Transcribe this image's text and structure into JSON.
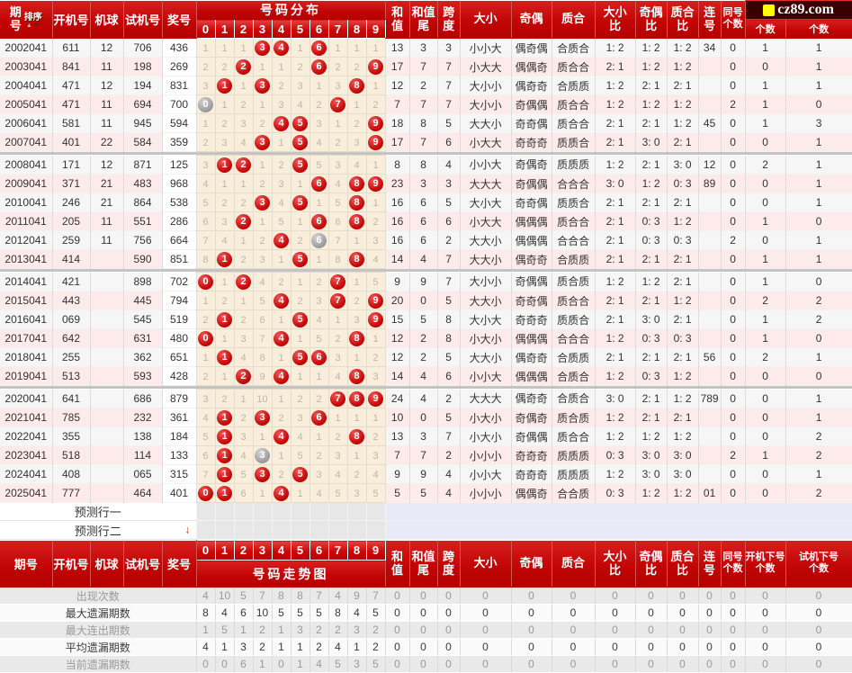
{
  "logo": {
    "text": "cz89.com",
    "square_color": "#ffff00"
  },
  "colors": {
    "header_red": "#c80404",
    "row_pink": "#fdeaea",
    "row_light": "#f6f6f6",
    "grid_cream": "#f9eddb",
    "ball_red": "#c20000",
    "ball_gray": "#a0a0a0",
    "prediction_lavender": "#e9e9f7",
    "separator_gray": "#c4c4c4"
  },
  "top_header": {
    "period_label": "期号",
    "sort_label": "排序",
    "sort_icons": [
      "up-arrow",
      "down-arrow"
    ],
    "cols": [
      "开机号",
      "机球",
      "试机号",
      "奖号"
    ],
    "dist_title": "号码分布",
    "digits": [
      "0",
      "1",
      "2",
      "3",
      "4",
      "5",
      "6",
      "7",
      "8",
      "9"
    ],
    "right_cols": [
      {
        "lines": [
          "和",
          "值"
        ]
      },
      {
        "lines": [
          "和值",
          "尾"
        ]
      },
      {
        "lines": [
          "跨",
          "度"
        ]
      },
      {
        "lines": [
          "大小"
        ]
      },
      {
        "lines": [
          "奇偶"
        ]
      },
      {
        "lines": [
          "质合"
        ]
      },
      {
        "lines": [
          "大小",
          "比"
        ]
      },
      {
        "lines": [
          "奇偶",
          "比"
        ]
      },
      {
        "lines": [
          "质合",
          "比"
        ]
      },
      {
        "lines": [
          "连",
          "号"
        ]
      },
      {
        "lines": [
          "同号",
          "个数"
        ]
      }
    ],
    "last_cols": [
      "个数",
      "个数"
    ]
  },
  "rows": [
    {
      "period": "2002041",
      "machine_no": "611",
      "machine_ball": "12",
      "test_no": "706",
      "prize_no": "436",
      "grid": [
        "1",
        "1",
        "1",
        "B3",
        "B4",
        "1",
        "B6",
        "1",
        "1",
        "1"
      ],
      "sum": "13",
      "sum_tail": "3",
      "span": "3",
      "size": "小小大",
      "parity": "偶奇偶",
      "prime": "合质合",
      "size_ratio": "1: 2",
      "parity_ratio": "1: 2",
      "prime_ratio": "1: 2",
      "consecutive": "34",
      "same_count": "0",
      "machine_next": "1",
      "test_next": "1"
    },
    {
      "period": "2003041",
      "machine_no": "841",
      "machine_ball": "11",
      "test_no": "198",
      "prize_no": "269",
      "grid": [
        "2",
        "2",
        "B2",
        "1",
        "1",
        "2",
        "B6",
        "2",
        "2",
        "B9"
      ],
      "sum": "17",
      "sum_tail": "7",
      "span": "7",
      "size": "小大大",
      "parity": "偶偶奇",
      "prime": "质合合",
      "size_ratio": "2: 1",
      "parity_ratio": "1: 2",
      "prime_ratio": "1: 2",
      "consecutive": "",
      "same_count": "0",
      "machine_next": "0",
      "test_next": "1"
    },
    {
      "period": "2004041",
      "machine_no": "471",
      "machine_ball": "12",
      "test_no": "194",
      "prize_no": "831",
      "grid": [
        "3",
        "B1",
        "1",
        "B3",
        "2",
        "3",
        "1",
        "3",
        "B8",
        "1"
      ],
      "sum": "12",
      "sum_tail": "2",
      "span": "7",
      "size": "大小小",
      "parity": "偶奇奇",
      "prime": "合质质",
      "size_ratio": "1: 2",
      "parity_ratio": "2: 1",
      "prime_ratio": "2: 1",
      "consecutive": "",
      "same_count": "0",
      "machine_next": "1",
      "test_next": "1"
    },
    {
      "period": "2005041",
      "machine_no": "471",
      "machine_ball": "11",
      "test_no": "694",
      "prize_no": "700",
      "grid": [
        "G0",
        "1",
        "2",
        "1",
        "3",
        "4",
        "2",
        "B7",
        "1",
        "2"
      ],
      "sum": "7",
      "sum_tail": "7",
      "span": "7",
      "size": "大小小",
      "parity": "奇偶偶",
      "prime": "质合合",
      "size_ratio": "1: 2",
      "parity_ratio": "1: 2",
      "prime_ratio": "1: 2",
      "consecutive": "",
      "same_count": "2",
      "machine_next": "1",
      "test_next": "0"
    },
    {
      "period": "2006041",
      "machine_no": "581",
      "machine_ball": "11",
      "test_no": "945",
      "prize_no": "594",
      "grid": [
        "1",
        "2",
        "3",
        "2",
        "B4",
        "B5",
        "3",
        "1",
        "2",
        "B9"
      ],
      "sum": "18",
      "sum_tail": "8",
      "span": "5",
      "size": "大大小",
      "parity": "奇奇偶",
      "prime": "质合合",
      "size_ratio": "2: 1",
      "parity_ratio": "2: 1",
      "prime_ratio": "1: 2",
      "consecutive": "45",
      "same_count": "0",
      "machine_next": "1",
      "test_next": "3"
    },
    {
      "period": "2007041",
      "machine_no": "401",
      "machine_ball": "22",
      "test_no": "584",
      "prize_no": "359",
      "grid": [
        "2",
        "3",
        "4",
        "B3",
        "1",
        "B5",
        "4",
        "2",
        "3",
        "B9"
      ],
      "sum": "17",
      "sum_tail": "7",
      "span": "6",
      "size": "小大大",
      "parity": "奇奇奇",
      "prime": "质质合",
      "size_ratio": "2: 1",
      "parity_ratio": "3: 0",
      "prime_ratio": "2: 1",
      "consecutive": "",
      "same_count": "0",
      "machine_next": "0",
      "test_next": "1"
    },
    {
      "period": "2008041",
      "machine_no": "171",
      "machine_ball": "12",
      "test_no": "871",
      "prize_no": "125",
      "grid": [
        "3",
        "B1",
        "B2",
        "1",
        "2",
        "B5",
        "5",
        "3",
        "4",
        "1"
      ],
      "sum": "8",
      "sum_tail": "8",
      "span": "4",
      "size": "小小大",
      "parity": "奇偶奇",
      "prime": "质质质",
      "size_ratio": "1: 2",
      "parity_ratio": "2: 1",
      "prime_ratio": "3: 0",
      "consecutive": "12",
      "same_count": "0",
      "machine_next": "2",
      "test_next": "1"
    },
    {
      "period": "2009041",
      "machine_no": "371",
      "machine_ball": "21",
      "test_no": "483",
      "prize_no": "968",
      "grid": [
        "4",
        "1",
        "1",
        "2",
        "3",
        "1",
        "B6",
        "4",
        "B8",
        "B9"
      ],
      "sum": "23",
      "sum_tail": "3",
      "span": "3",
      "size": "大大大",
      "parity": "奇偶偶",
      "prime": "合合合",
      "size_ratio": "3: 0",
      "parity_ratio": "1: 2",
      "prime_ratio": "0: 3",
      "consecutive": "89",
      "same_count": "0",
      "machine_next": "0",
      "test_next": "1"
    },
    {
      "period": "2010041",
      "machine_no": "246",
      "machine_ball": "21",
      "test_no": "864",
      "prize_no": "538",
      "grid": [
        "5",
        "2",
        "2",
        "B3",
        "4",
        "B5",
        "1",
        "5",
        "B8",
        "1"
      ],
      "sum": "16",
      "sum_tail": "6",
      "span": "5",
      "size": "大小大",
      "parity": "奇奇偶",
      "prime": "质质合",
      "size_ratio": "2: 1",
      "parity_ratio": "2: 1",
      "prime_ratio": "2: 1",
      "consecutive": "",
      "same_count": "0",
      "machine_next": "0",
      "test_next": "1"
    },
    {
      "period": "2011041",
      "machine_no": "205",
      "machine_ball": "11",
      "test_no": "551",
      "prize_no": "286",
      "grid": [
        "6",
        "3",
        "B2",
        "1",
        "5",
        "1",
        "B6",
        "6",
        "B8",
        "2"
      ],
      "sum": "16",
      "sum_tail": "6",
      "span": "6",
      "size": "小大大",
      "parity": "偶偶偶",
      "prime": "质合合",
      "size_ratio": "2: 1",
      "parity_ratio": "0: 3",
      "prime_ratio": "1: 2",
      "consecutive": "",
      "same_count": "0",
      "machine_next": "1",
      "test_next": "0"
    },
    {
      "period": "2012041",
      "machine_no": "259",
      "machine_ball": "11",
      "test_no": "756",
      "prize_no": "664",
      "grid": [
        "7",
        "4",
        "1",
        "2",
        "B4",
        "2",
        "G6",
        "7",
        "1",
        "3"
      ],
      "sum": "16",
      "sum_tail": "6",
      "span": "2",
      "size": "大大小",
      "parity": "偶偶偶",
      "prime": "合合合",
      "size_ratio": "2: 1",
      "parity_ratio": "0: 3",
      "prime_ratio": "0: 3",
      "consecutive": "",
      "same_count": "2",
      "machine_next": "0",
      "test_next": "1"
    },
    {
      "period": "2013041",
      "machine_no": "414",
      "machine_ball": "",
      "test_no": "590",
      "prize_no": "851",
      "grid": [
        "8",
        "B1",
        "2",
        "3",
        "1",
        "B5",
        "1",
        "8",
        "B8",
        "4"
      ],
      "sum": "14",
      "sum_tail": "4",
      "span": "7",
      "size": "大大小",
      "parity": "偶奇奇",
      "prime": "合质质",
      "size_ratio": "2: 1",
      "parity_ratio": "2: 1",
      "prime_ratio": "2: 1",
      "consecutive": "",
      "same_count": "0",
      "machine_next": "1",
      "test_next": "1"
    },
    {
      "period": "2014041",
      "machine_no": "421",
      "machine_ball": "",
      "test_no": "898",
      "prize_no": "702",
      "grid": [
        "B0",
        "1",
        "B2",
        "4",
        "2",
        "1",
        "2",
        "B7",
        "1",
        "5"
      ],
      "sum": "9",
      "sum_tail": "9",
      "span": "7",
      "size": "大小小",
      "parity": "奇偶偶",
      "prime": "质合质",
      "size_ratio": "1: 2",
      "parity_ratio": "1: 2",
      "prime_ratio": "2: 1",
      "consecutive": "",
      "same_count": "0",
      "machine_next": "1",
      "test_next": "0"
    },
    {
      "period": "2015041",
      "machine_no": "443",
      "machine_ball": "",
      "test_no": "445",
      "prize_no": "794",
      "grid": [
        "1",
        "2",
        "1",
        "5",
        "B4",
        "2",
        "3",
        "B7",
        "2",
        "B9"
      ],
      "sum": "20",
      "sum_tail": "0",
      "span": "5",
      "size": "大大小",
      "parity": "奇奇偶",
      "prime": "质合合",
      "size_ratio": "2: 1",
      "parity_ratio": "2: 1",
      "prime_ratio": "1: 2",
      "consecutive": "",
      "same_count": "0",
      "machine_next": "2",
      "test_next": "2"
    },
    {
      "period": "2016041",
      "machine_no": "069",
      "machine_ball": "",
      "test_no": "545",
      "prize_no": "519",
      "grid": [
        "2",
        "B1",
        "2",
        "6",
        "1",
        "B5",
        "4",
        "1",
        "3",
        "B9"
      ],
      "sum": "15",
      "sum_tail": "5",
      "span": "8",
      "size": "大小大",
      "parity": "奇奇奇",
      "prime": "质质合",
      "size_ratio": "2: 1",
      "parity_ratio": "3: 0",
      "prime_ratio": "2: 1",
      "consecutive": "",
      "same_count": "0",
      "machine_next": "1",
      "test_next": "2"
    },
    {
      "period": "2017041",
      "machine_no": "642",
      "machine_ball": "",
      "test_no": "631",
      "prize_no": "480",
      "grid": [
        "B0",
        "1",
        "3",
        "7",
        "B4",
        "1",
        "5",
        "2",
        "B8",
        "1"
      ],
      "sum": "12",
      "sum_tail": "2",
      "span": "8",
      "size": "小大小",
      "parity": "偶偶偶",
      "prime": "合合合",
      "size_ratio": "1: 2",
      "parity_ratio": "0: 3",
      "prime_ratio": "0: 3",
      "consecutive": "",
      "same_count": "0",
      "machine_next": "1",
      "test_next": "0"
    },
    {
      "period": "2018041",
      "machine_no": "255",
      "machine_ball": "",
      "test_no": "362",
      "prize_no": "651",
      "grid": [
        "1",
        "B1",
        "4",
        "8",
        "1",
        "B5",
        "B6",
        "3",
        "1",
        "2"
      ],
      "sum": "12",
      "sum_tail": "2",
      "span": "5",
      "size": "大大小",
      "parity": "偶奇奇",
      "prime": "合质质",
      "size_ratio": "2: 1",
      "parity_ratio": "2: 1",
      "prime_ratio": "2: 1",
      "consecutive": "56",
      "same_count": "0",
      "machine_next": "2",
      "test_next": "1"
    },
    {
      "period": "2019041",
      "machine_no": "513",
      "machine_ball": "",
      "test_no": "593",
      "prize_no": "428",
      "grid": [
        "2",
        "1",
        "B2",
        "9",
        "B4",
        "1",
        "1",
        "4",
        "B8",
        "3"
      ],
      "sum": "14",
      "sum_tail": "4",
      "span": "6",
      "size": "小小大",
      "parity": "偶偶偶",
      "prime": "合质合",
      "size_ratio": "1: 2",
      "parity_ratio": "0: 3",
      "prime_ratio": "1: 2",
      "consecutive": "",
      "same_count": "0",
      "machine_next": "0",
      "test_next": "0"
    },
    {
      "period": "2020041",
      "machine_no": "641",
      "machine_ball": "",
      "test_no": "686",
      "prize_no": "879",
      "grid": [
        "3",
        "2",
        "1",
        "10",
        "1",
        "2",
        "2",
        "B7",
        "B8",
        "B9"
      ],
      "sum": "24",
      "sum_tail": "4",
      "span": "2",
      "size": "大大大",
      "parity": "偶奇奇",
      "prime": "合质合",
      "size_ratio": "3: 0",
      "parity_ratio": "2: 1",
      "prime_ratio": "1: 2",
      "consecutive": "789",
      "same_count": "0",
      "machine_next": "0",
      "test_next": "1"
    },
    {
      "period": "2021041",
      "machine_no": "785",
      "machine_ball": "",
      "test_no": "232",
      "prize_no": "361",
      "grid": [
        "4",
        "B1",
        "2",
        "B3",
        "2",
        "3",
        "B6",
        "1",
        "1",
        "1"
      ],
      "sum": "10",
      "sum_tail": "0",
      "span": "5",
      "size": "小大小",
      "parity": "奇偶奇",
      "prime": "质合质",
      "size_ratio": "1: 2",
      "parity_ratio": "2: 1",
      "prime_ratio": "2: 1",
      "consecutive": "",
      "same_count": "0",
      "machine_next": "0",
      "test_next": "1"
    },
    {
      "period": "2022041",
      "machine_no": "355",
      "machine_ball": "",
      "test_no": "138",
      "prize_no": "184",
      "grid": [
        "5",
        "B1",
        "3",
        "1",
        "B4",
        "4",
        "1",
        "2",
        "B8",
        "2"
      ],
      "sum": "13",
      "sum_tail": "3",
      "span": "7",
      "size": "小大小",
      "parity": "奇偶偶",
      "prime": "质合合",
      "size_ratio": "1: 2",
      "parity_ratio": "1: 2",
      "prime_ratio": "1: 2",
      "consecutive": "",
      "same_count": "0",
      "machine_next": "0",
      "test_next": "2"
    },
    {
      "period": "2023041",
      "machine_no": "518",
      "machine_ball": "",
      "test_no": "114",
      "prize_no": "133",
      "grid": [
        "6",
        "B1",
        "4",
        "G3",
        "1",
        "5",
        "2",
        "3",
        "1",
        "3"
      ],
      "sum": "7",
      "sum_tail": "7",
      "span": "2",
      "size": "小小小",
      "parity": "奇奇奇",
      "prime": "质质质",
      "size_ratio": "0: 3",
      "parity_ratio": "3: 0",
      "prime_ratio": "3: 0",
      "consecutive": "",
      "same_count": "2",
      "machine_next": "1",
      "test_next": "2"
    },
    {
      "period": "2024041",
      "machine_no": "408",
      "machine_ball": "",
      "test_no": "065",
      "prize_no": "315",
      "grid": [
        "7",
        "B1",
        "5",
        "B3",
        "2",
        "B5",
        "3",
        "4",
        "2",
        "4"
      ],
      "sum": "9",
      "sum_tail": "9",
      "span": "4",
      "size": "小小大",
      "parity": "奇奇奇",
      "prime": "质质质",
      "size_ratio": "1: 2",
      "parity_ratio": "3: 0",
      "prime_ratio": "3: 0",
      "consecutive": "",
      "same_count": "0",
      "machine_next": "0",
      "test_next": "1"
    },
    {
      "period": "2025041",
      "machine_no": "777",
      "machine_ball": "",
      "test_no": "464",
      "prize_no": "401",
      "grid": [
        "B0",
        "B1",
        "6",
        "1",
        "B4",
        "1",
        "4",
        "5",
        "3",
        "5"
      ],
      "sum": "5",
      "sum_tail": "5",
      "span": "4",
      "size": "小小小",
      "parity": "偶偶奇",
      "prime": "合合质",
      "size_ratio": "0: 3",
      "parity_ratio": "1: 2",
      "prime_ratio": "1: 2",
      "consecutive": "01",
      "same_count": "0",
      "machine_next": "0",
      "test_next": "2"
    }
  ],
  "group_size": 6,
  "predictions": [
    {
      "label": "预测行一",
      "arrow": ""
    },
    {
      "label": "预测行二",
      "arrow": "↓"
    }
  ],
  "bottom_header": {
    "left_cols": [
      "期号",
      "开机号",
      "机球",
      "试机号",
      "奖号"
    ],
    "digits": [
      "0",
      "1",
      "2",
      "3",
      "4",
      "5",
      "6",
      "7",
      "8",
      "9"
    ],
    "trend_title": "号码走势图",
    "right_cols": [
      {
        "lines": [
          "和",
          "值"
        ]
      },
      {
        "lines": [
          "和值",
          "尾"
        ]
      },
      {
        "lines": [
          "跨",
          "度"
        ]
      },
      {
        "lines": [
          "大小"
        ]
      },
      {
        "lines": [
          "奇偶"
        ]
      },
      {
        "lines": [
          "质合"
        ]
      },
      {
        "lines": [
          "大小",
          "比"
        ]
      },
      {
        "lines": [
          "奇偶",
          "比"
        ]
      },
      {
        "lines": [
          "质合",
          "比"
        ]
      },
      {
        "lines": [
          "连",
          "号"
        ]
      },
      {
        "lines": [
          "同号",
          "个数"
        ]
      },
      {
        "lines": [
          "开机下号",
          "个数"
        ]
      },
      {
        "lines": [
          "试机下号",
          "个数"
        ]
      }
    ]
  },
  "stats": [
    {
      "label": "出现次数",
      "values": [
        "4",
        "10",
        "5",
        "7",
        "8",
        "8",
        "7",
        "4",
        "9",
        "7",
        "0",
        "0",
        "0",
        "0",
        "0",
        "0",
        "0",
        "0",
        "0",
        "0",
        "0",
        "0",
        "0"
      ]
    },
    {
      "label": "最大遗漏期数",
      "values": [
        "8",
        "4",
        "6",
        "10",
        "5",
        "5",
        "5",
        "8",
        "4",
        "5",
        "0",
        "0",
        "0",
        "0",
        "0",
        "0",
        "0",
        "0",
        "0",
        "0",
        "0",
        "0",
        "0"
      ]
    },
    {
      "label": "最大连出期数",
      "values": [
        "1",
        "5",
        "1",
        "2",
        "1",
        "3",
        "2",
        "2",
        "3",
        "2",
        "0",
        "0",
        "0",
        "0",
        "0",
        "0",
        "0",
        "0",
        "0",
        "0",
        "0",
        "0",
        "0"
      ]
    },
    {
      "label": "平均遗漏期数",
      "values": [
        "4",
        "1",
        "3",
        "2",
        "1",
        "1",
        "2",
        "4",
        "1",
        "2",
        "0",
        "0",
        "0",
        "0",
        "0",
        "0",
        "0",
        "0",
        "0",
        "0",
        "0",
        "0",
        "0"
      ]
    },
    {
      "label": "当前遗漏期数",
      "values": [
        "0",
        "0",
        "6",
        "1",
        "0",
        "1",
        "4",
        "5",
        "3",
        "5",
        "0",
        "0",
        "0",
        "0",
        "0",
        "0",
        "0",
        "0",
        "0",
        "0",
        "0",
        "0",
        "0"
      ]
    }
  ]
}
